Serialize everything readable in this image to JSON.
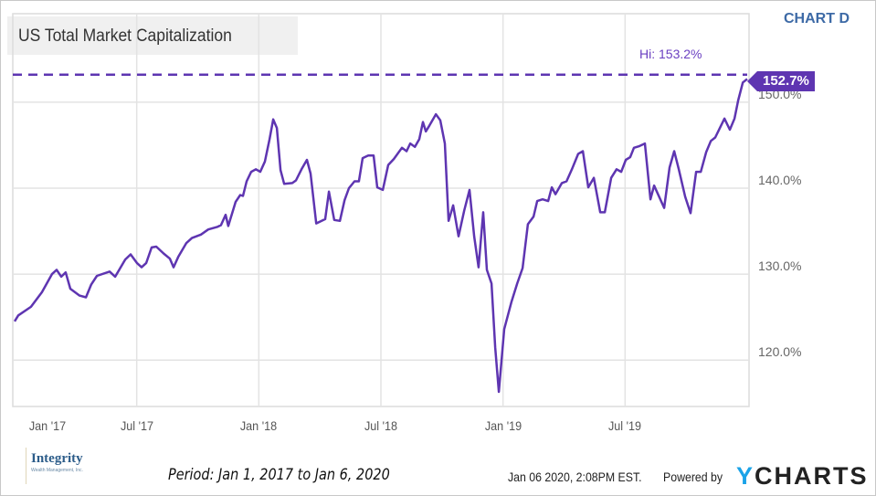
{
  "header": {
    "title": "US Total Market Capitalization",
    "chart_tag": "CHART D"
  },
  "footer": {
    "logo": "Integrity",
    "logo_sub": "Wealth Management, Inc.",
    "period": "Period: Jan 1, 2017 to Jan 6, 2020",
    "timestamp": "Jan 06 2020, 2:08PM EST.",
    "powered_by": "Powered by",
    "brand_y": "Y",
    "brand_rest": "CHARTS"
  },
  "colors": {
    "line": "#5e35b1",
    "grid": "#e3e3e3",
    "brand": "#1aa3e8"
  },
  "chart_data": {
    "type": "line",
    "title": "US Total Market Capitalization",
    "xlabel": "",
    "ylabel": "",
    "x_unit": "years since Jan 1, 2017",
    "xlim": [
      0,
      3
    ],
    "ylim": [
      114.6,
      160.3
    ],
    "grid": true,
    "x_ticks": [
      {
        "x": 0,
        "label": "Jan '17"
      },
      {
        "x": 0.5,
        "label": "Jul '17"
      },
      {
        "x": 1,
        "label": "Jan '18"
      },
      {
        "x": 1.5,
        "label": "Jul '18"
      },
      {
        "x": 2,
        "label": "Jan '19"
      },
      {
        "x": 2.5,
        "label": "Jul '19"
      }
    ],
    "y_ticks": [
      {
        "y": 120,
        "label": "120.0%"
      },
      {
        "y": 130,
        "label": "130.0%"
      },
      {
        "y": 140,
        "label": "140.0%"
      },
      {
        "y": 150,
        "label": "150.0%"
      }
    ],
    "hi": {
      "value": 153.2,
      "label": "Hi: 153.2%"
    },
    "last": {
      "value": 152.7,
      "label": "152.7%"
    },
    "series": [
      {
        "name": "US Total Market Capitalization",
        "points": [
          [
            0,
            124.5
          ],
          [
            0.015,
            125.2
          ],
          [
            0.067,
            126.2
          ],
          [
            0.112,
            127.9
          ],
          [
            0.153,
            130.0
          ],
          [
            0.172,
            130.5
          ],
          [
            0.191,
            129.7
          ],
          [
            0.209,
            130.2
          ],
          [
            0.228,
            128.3
          ],
          [
            0.266,
            127.5
          ],
          [
            0.292,
            127.3
          ],
          [
            0.314,
            128.8
          ],
          [
            0.337,
            129.8
          ],
          [
            0.389,
            130.3
          ],
          [
            0.412,
            129.7
          ],
          [
            0.453,
            131.7
          ],
          [
            0.475,
            132.3
          ],
          [
            0.501,
            131.3
          ],
          [
            0.52,
            130.8
          ],
          [
            0.539,
            131.3
          ],
          [
            0.561,
            133.1
          ],
          [
            0.58,
            133.2
          ],
          [
            0.61,
            132.4
          ],
          [
            0.636,
            131.8
          ],
          [
            0.651,
            130.8
          ],
          [
            0.67,
            132.0
          ],
          [
            0.703,
            133.6
          ],
          [
            0.726,
            134.2
          ],
          [
            0.763,
            134.6
          ],
          [
            0.793,
            135.2
          ],
          [
            0.831,
            135.5
          ],
          [
            0.845,
            135.7
          ],
          [
            0.864,
            136.9
          ],
          [
            0.875,
            135.6
          ],
          [
            0.905,
            138.4
          ],
          [
            0.924,
            139.2
          ],
          [
            0.935,
            139.1
          ],
          [
            0.95,
            140.8
          ],
          [
            0.969,
            141.9
          ],
          [
            0.988,
            142.2
          ],
          [
            1.006,
            141.9
          ],
          [
            1.025,
            143.1
          ],
          [
            1.044,
            145.7
          ],
          [
            1.059,
            148.0
          ],
          [
            1.074,
            147.0
          ],
          [
            1.089,
            142.1
          ],
          [
            1.104,
            140.5
          ],
          [
            1.137,
            140.6
          ],
          [
            1.152,
            140.9
          ],
          [
            1.175,
            142.2
          ],
          [
            1.197,
            143.3
          ],
          [
            1.212,
            141.7
          ],
          [
            1.235,
            135.9
          ],
          [
            1.272,
            136.4
          ],
          [
            1.287,
            139.6
          ],
          [
            1.309,
            136.3
          ],
          [
            1.332,
            136.2
          ],
          [
            1.351,
            138.6
          ],
          [
            1.369,
            140.0
          ],
          [
            1.392,
            140.8
          ],
          [
            1.41,
            140.8
          ],
          [
            1.425,
            143.5
          ],
          [
            1.448,
            143.8
          ],
          [
            1.47,
            143.8
          ],
          [
            1.485,
            140.1
          ],
          [
            1.508,
            139.8
          ],
          [
            1.53,
            142.7
          ],
          [
            1.553,
            143.4
          ],
          [
            1.586,
            144.7
          ],
          [
            1.605,
            144.3
          ],
          [
            1.62,
            145.2
          ],
          [
            1.639,
            144.8
          ],
          [
            1.657,
            145.7
          ],
          [
            1.672,
            147.7
          ],
          [
            1.684,
            146.6
          ],
          [
            1.699,
            147.3
          ],
          [
            1.725,
            148.6
          ],
          [
            1.743,
            147.9
          ],
          [
            1.762,
            145.2
          ],
          [
            1.777,
            136.2
          ],
          [
            1.796,
            138.0
          ],
          [
            1.818,
            134.4
          ],
          [
            1.841,
            137.4
          ],
          [
            1.863,
            139.8
          ],
          [
            1.882,
            134.4
          ],
          [
            1.9,
            130.8
          ],
          [
            1.919,
            137.2
          ],
          [
            1.934,
            130.5
          ],
          [
            1.953,
            128.9
          ],
          [
            1.968,
            121.5
          ],
          [
            1.983,
            116.3
          ],
          [
            2.005,
            123.6
          ],
          [
            2.035,
            126.8
          ],
          [
            2.058,
            128.9
          ],
          [
            2.08,
            130.7
          ],
          [
            2.102,
            135.8
          ],
          [
            2.125,
            136.7
          ],
          [
            2.14,
            138.5
          ],
          [
            2.162,
            138.7
          ],
          [
            2.185,
            138.5
          ],
          [
            2.2,
            140.1
          ],
          [
            2.215,
            139.3
          ],
          [
            2.241,
            140.6
          ],
          [
            2.26,
            140.8
          ],
          [
            2.282,
            142.2
          ],
          [
            2.308,
            144.0
          ],
          [
            2.327,
            144.3
          ],
          [
            2.349,
            140.1
          ],
          [
            2.372,
            141.2
          ],
          [
            2.398,
            137.2
          ],
          [
            2.417,
            137.2
          ],
          [
            2.443,
            141.2
          ],
          [
            2.465,
            142.2
          ],
          [
            2.484,
            141.9
          ],
          [
            2.503,
            143.3
          ],
          [
            2.521,
            143.6
          ],
          [
            2.536,
            144.7
          ],
          [
            2.559,
            144.9
          ],
          [
            2.581,
            145.2
          ],
          [
            2.604,
            138.7
          ],
          [
            2.619,
            140.3
          ],
          [
            2.66,
            137.7
          ],
          [
            2.682,
            142.4
          ],
          [
            2.701,
            144.3
          ],
          [
            2.72,
            142.2
          ],
          [
            2.746,
            139.0
          ],
          [
            2.768,
            137.1
          ],
          [
            2.791,
            141.9
          ],
          [
            2.81,
            141.9
          ],
          [
            2.832,
            144.2
          ],
          [
            2.851,
            145.5
          ],
          [
            2.869,
            145.9
          ],
          [
            2.888,
            147.0
          ],
          [
            2.907,
            148.1
          ],
          [
            2.929,
            146.8
          ],
          [
            2.948,
            148.1
          ],
          [
            2.963,
            150.2
          ],
          [
            2.982,
            152.3
          ],
          [
            3.0,
            152.7
          ]
        ]
      }
    ]
  }
}
